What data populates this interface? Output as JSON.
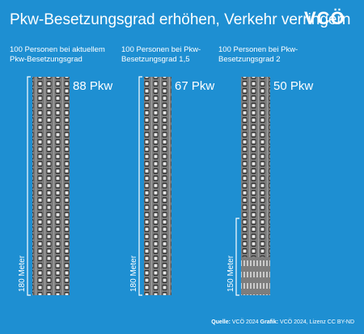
{
  "header": {
    "title": "Pkw-Besetzungsgrad erhöhen, Verkehr verringern",
    "logo": "VCÖ"
  },
  "panels": [
    {
      "label": [
        "100 Personen bei aktuellem",
        "Pkw-Besetzungsgrad"
      ],
      "cars": "88 Pkw",
      "length": "180 Meter"
    },
    {
      "label": [
        "100 Personen bei Pkw-",
        "Besetzungsgrad 1,5"
      ],
      "cars": "67 Pkw",
      "length": "180 Meter"
    },
    {
      "label": [
        "100 Personen bei Pkw-",
        "Besetzungsgrad 2"
      ],
      "cars": "50 Pkw",
      "length": "150 Meter"
    }
  ],
  "footer": {
    "source_label": "Quelle:",
    "source": "VCÖ 2024",
    "graphic_label": "Grafik:",
    "graphic": "VCÖ 2024, Lizenz CC BY-ND"
  }
}
